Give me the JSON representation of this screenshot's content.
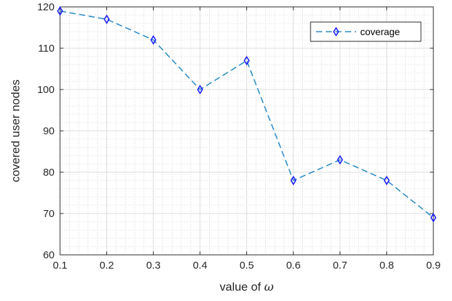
{
  "chart_data": {
    "type": "line",
    "title": "",
    "xlabel_prefix": "value of ",
    "xlabel_symbol": "ω",
    "ylabel": "covered user nodes",
    "xlim": [
      0.1,
      0.9
    ],
    "ylim": [
      60,
      120
    ],
    "xticks": [
      "0.1",
      "0.2",
      "0.3",
      "0.4",
      "0.5",
      "0.6",
      "0.7",
      "0.8",
      "0.9"
    ],
    "yticks": [
      "60",
      "70",
      "80",
      "90",
      "100",
      "110",
      "120"
    ],
    "grid": true,
    "minor_grid": true,
    "legend_position": "top-right",
    "series": [
      {
        "name": "coverage",
        "color": "#2b8cc4",
        "marker_color": "#1a1aff",
        "line_style": "dashed",
        "marker": "diamond",
        "x": [
          0.1,
          0.2,
          0.3,
          0.4,
          0.5,
          0.6,
          0.7,
          0.8,
          0.9
        ],
        "values": [
          119,
          117,
          112,
          100,
          107,
          78,
          83,
          78,
          69
        ]
      }
    ]
  }
}
